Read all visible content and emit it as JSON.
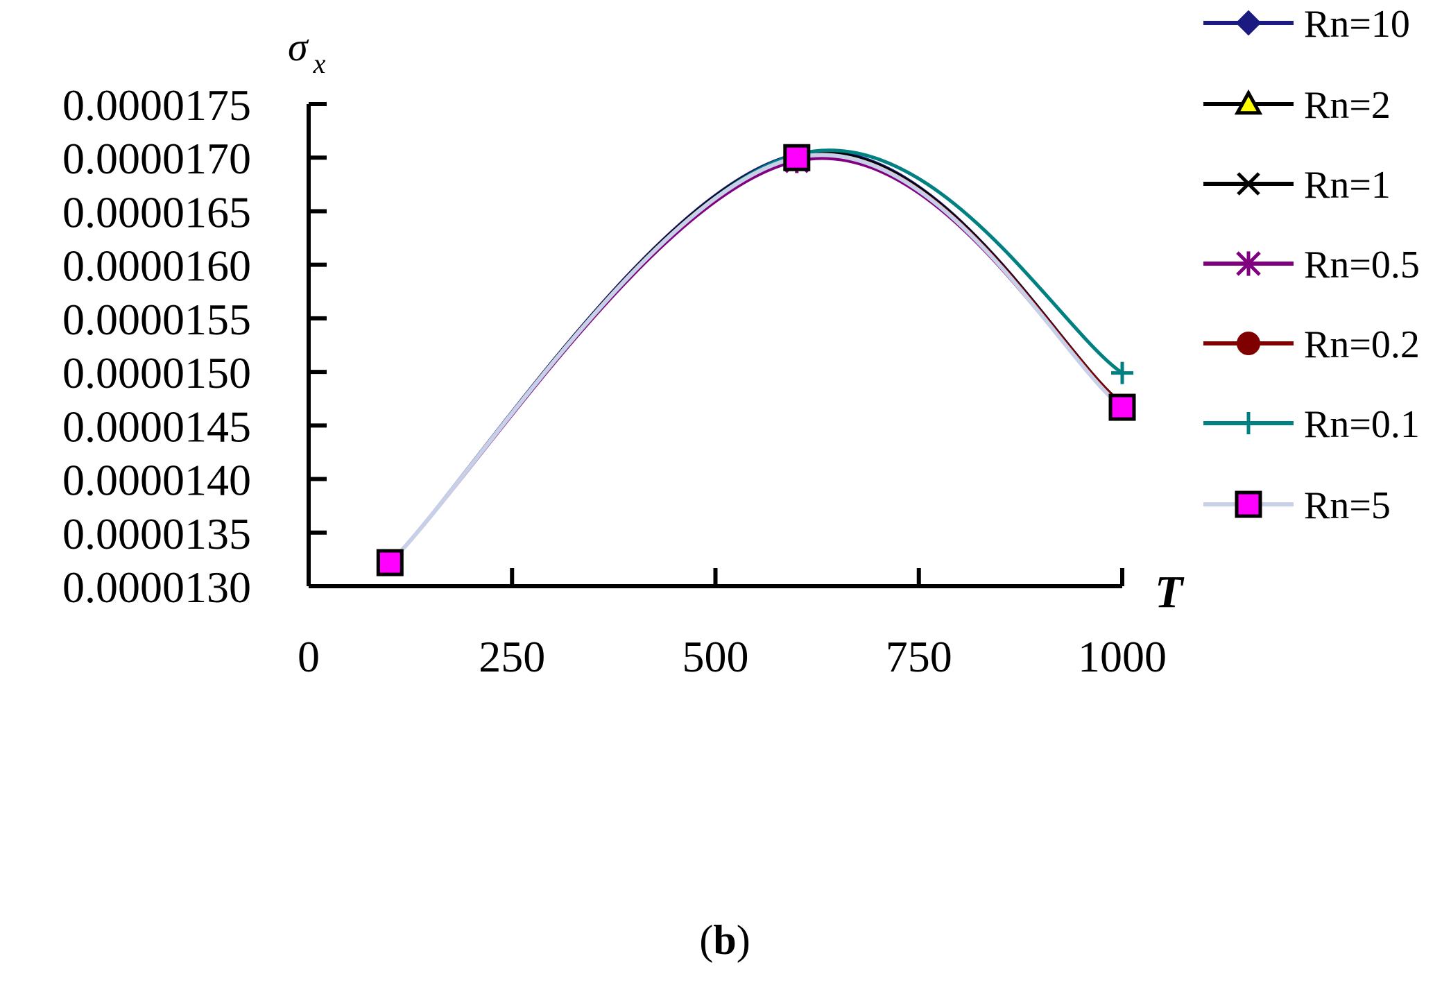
{
  "chart_data": {
    "type": "line",
    "title": "",
    "xlabel": "T",
    "ylabel": "σ",
    "ylabel_subscript": "x",
    "xlim": [
      0,
      1000
    ],
    "ylim": [
      1.3e-05,
      1.75e-05
    ],
    "x_ticks": [
      "0",
      "250",
      "500",
      "750",
      "1000"
    ],
    "y_ticks": [
      "0.0000130",
      "0.0000135",
      "0.0000140",
      "0.0000145",
      "0.0000150",
      "0.0000155",
      "0.0000160",
      "0.0000165",
      "0.0000170",
      "0.0000175"
    ],
    "grid": false,
    "legend_position": "right",
    "x": [
      100,
      600,
      1000
    ],
    "series": [
      {
        "name": "Rn=10",
        "color": "#1a1a80",
        "marker": "diamond",
        "values": [
          1.322e-05,
          1.703e-05,
          1.47e-05
        ]
      },
      {
        "name": "Rn=2",
        "color": "#000000",
        "marker": "triangle",
        "values": [
          1.322e-05,
          1.702e-05,
          1.47e-05
        ]
      },
      {
        "name": "Rn=1",
        "color": "#000000",
        "marker": "x",
        "values": [
          1.322e-05,
          1.701e-05,
          1.47e-05
        ]
      },
      {
        "name": "Rn=0.5",
        "color": "#800080",
        "marker": "star",
        "values": [
          1.322e-05,
          1.697e-05,
          1.468e-05
        ]
      },
      {
        "name": "Rn=0.2",
        "color": "#800000",
        "marker": "circle",
        "values": [
          1.322e-05,
          1.7e-05,
          1.47e-05
        ]
      },
      {
        "name": "Rn=0.1",
        "color": "#008080",
        "marker": "plus",
        "values": [
          1.322e-05,
          1.703e-05,
          1.499e-05
        ]
      },
      {
        "name": "Rn=5",
        "color": "#c8d0e8",
        "marker": "square",
        "values": [
          1.322e-05,
          1.7e-05,
          1.467e-05
        ]
      }
    ]
  },
  "caption": {
    "open": "(",
    "letter": "b",
    "close": ")"
  }
}
